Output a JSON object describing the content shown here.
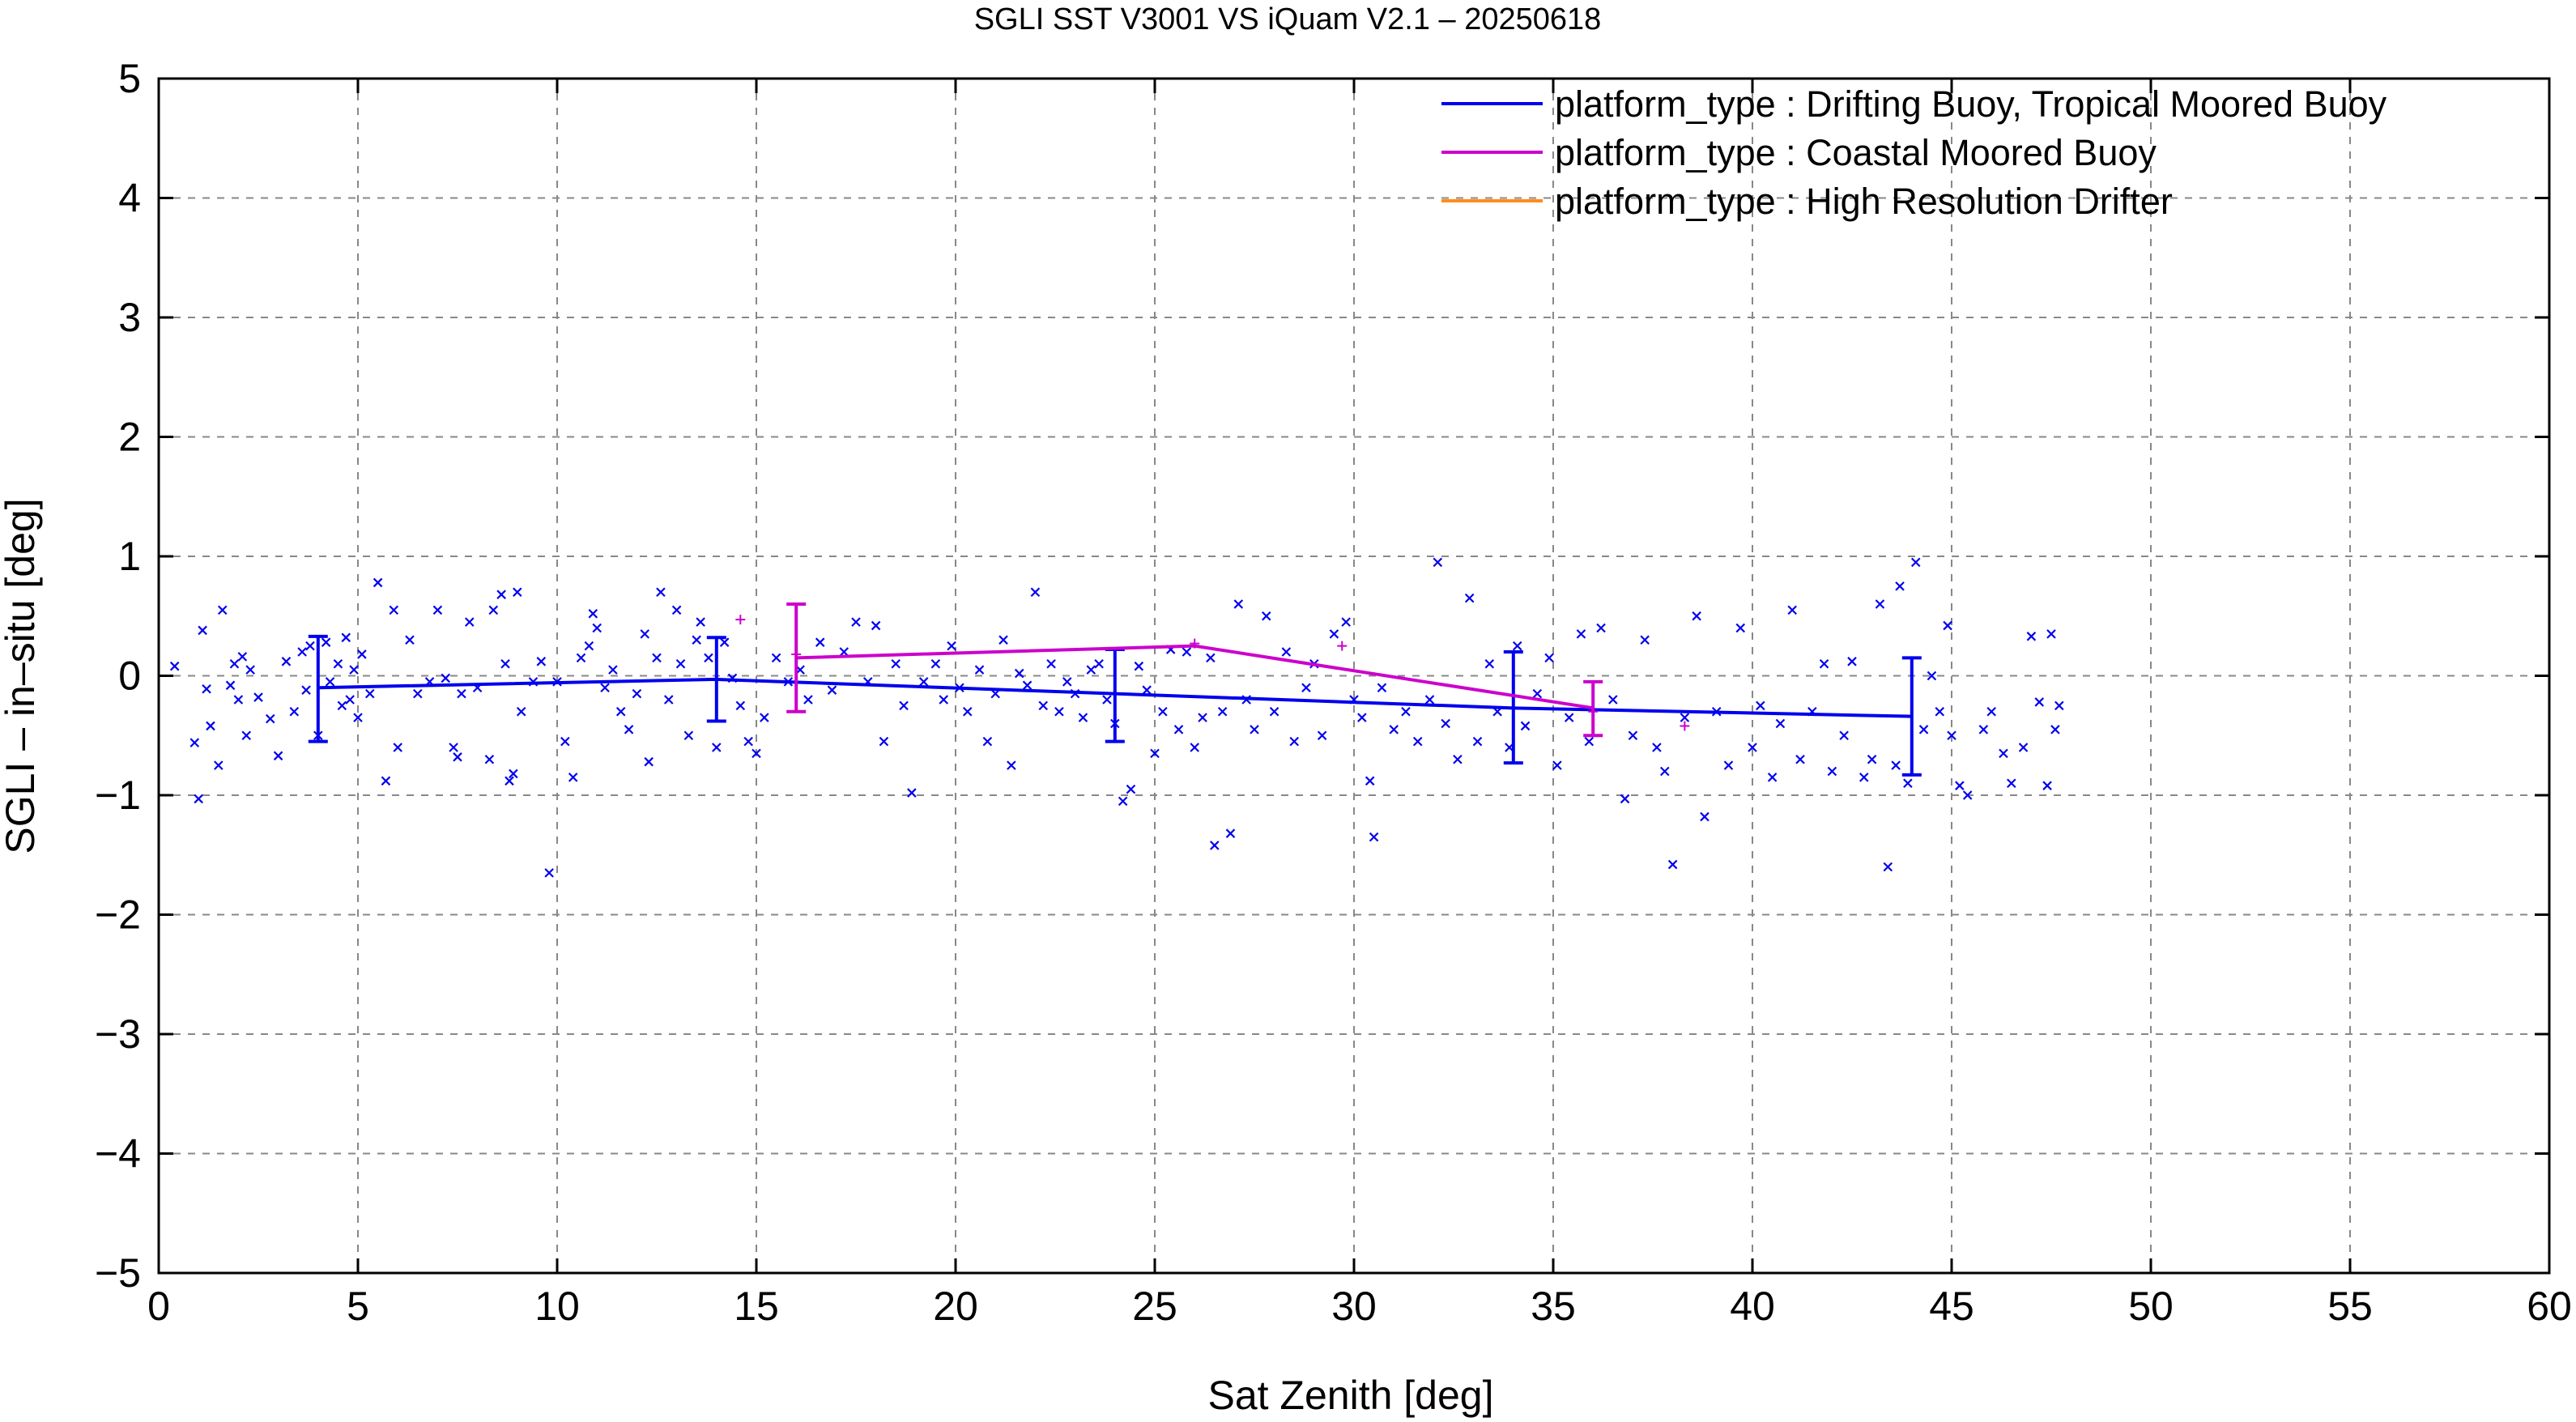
{
  "chart_data": {
    "type": "scatter",
    "title": "SGLI SST V3001 VS iQuam V2.1  – 20250618",
    "xlabel": "Sat Zenith [deg]",
    "ylabel": "SGLI – in–situ [deg]",
    "xlim": [
      0,
      60
    ],
    "ylim": [
      -5,
      5
    ],
    "xticks": [
      0,
      5,
      10,
      15,
      20,
      25,
      30,
      35,
      40,
      45,
      50,
      55,
      60
    ],
    "yticks": [
      -5,
      -4,
      -3,
      -2,
      -1,
      0,
      1,
      2,
      3,
      4,
      5
    ],
    "xtick_labels": [
      "0",
      "5",
      "10",
      "15",
      "20",
      "25",
      "30",
      "35",
      "40",
      "45",
      "50",
      "55",
      "60"
    ],
    "ytick_labels": [
      "−5",
      "−4",
      "−3",
      "−2",
      "−1",
      "0",
      "1",
      "2",
      "3",
      "4",
      "5"
    ],
    "grid": true,
    "legend_position": "top-right",
    "series": [
      {
        "name": "platform_type : Drifting Buoy, Tropical Moored Buoy",
        "color": "#0000ee",
        "marker": "x",
        "mean_x": [
          4,
          14,
          24,
          34,
          44
        ],
        "mean_y": [
          -0.1,
          -0.03,
          -0.15,
          -0.27,
          -0.34
        ],
        "err_low": [
          -0.55,
          -0.38,
          -0.55,
          -0.73,
          -0.83
        ],
        "err_high": [
          0.33,
          0.32,
          0.22,
          0.2,
          0.15
        ],
        "points": [
          [
            0.4,
            0.08
          ],
          [
            0.9,
            -0.56
          ],
          [
            1.0,
            -1.03
          ],
          [
            1.1,
            0.38
          ],
          [
            1.2,
            -0.11
          ],
          [
            1.3,
            -0.42
          ],
          [
            1.5,
            -0.75
          ],
          [
            1.6,
            0.55
          ],
          [
            1.8,
            -0.08
          ],
          [
            1.9,
            0.1
          ],
          [
            2.0,
            -0.2
          ],
          [
            2.1,
            0.16
          ],
          [
            2.2,
            -0.5
          ],
          [
            2.3,
            0.05
          ],
          [
            2.5,
            -0.18
          ],
          [
            2.8,
            -0.36
          ],
          [
            3.0,
            -0.67
          ],
          [
            3.2,
            0.12
          ],
          [
            3.4,
            -0.3
          ],
          [
            3.6,
            0.2
          ],
          [
            3.7,
            -0.12
          ],
          [
            3.8,
            0.25
          ],
          [
            4.0,
            -0.5
          ],
          [
            4.2,
            0.28
          ],
          [
            4.3,
            -0.05
          ],
          [
            4.5,
            0.1
          ],
          [
            4.6,
            -0.25
          ],
          [
            4.7,
            0.32
          ],
          [
            4.8,
            -0.2
          ],
          [
            4.9,
            0.05
          ],
          [
            5.0,
            -0.35
          ],
          [
            5.1,
            0.18
          ],
          [
            5.3,
            -0.15
          ],
          [
            5.5,
            0.78
          ],
          [
            5.7,
            -0.88
          ],
          [
            5.9,
            0.55
          ],
          [
            6.0,
            -0.6
          ],
          [
            6.3,
            0.3
          ],
          [
            6.5,
            -0.15
          ],
          [
            6.8,
            -0.05
          ],
          [
            7.0,
            0.55
          ],
          [
            7.2,
            -0.02
          ],
          [
            7.4,
            -0.6
          ],
          [
            7.5,
            -0.68
          ],
          [
            7.6,
            -0.15
          ],
          [
            7.8,
            0.45
          ],
          [
            8.0,
            -0.1
          ],
          [
            8.3,
            -0.7
          ],
          [
            8.4,
            0.55
          ],
          [
            8.6,
            0.68
          ],
          [
            8.7,
            0.1
          ],
          [
            8.8,
            -0.88
          ],
          [
            8.9,
            -0.82
          ],
          [
            9.0,
            0.7
          ],
          [
            9.1,
            -0.3
          ],
          [
            9.4,
            -0.05
          ],
          [
            9.6,
            0.12
          ],
          [
            9.8,
            -1.65
          ],
          [
            10.0,
            -0.05
          ],
          [
            10.2,
            -0.55
          ],
          [
            10.4,
            -0.85
          ],
          [
            10.6,
            0.15
          ],
          [
            10.8,
            0.25
          ],
          [
            10.9,
            0.52
          ],
          [
            11.0,
            0.4
          ],
          [
            11.2,
            -0.1
          ],
          [
            11.4,
            0.05
          ],
          [
            11.6,
            -0.3
          ],
          [
            11.8,
            -0.45
          ],
          [
            12.0,
            -0.15
          ],
          [
            12.2,
            0.35
          ],
          [
            12.3,
            -0.72
          ],
          [
            12.5,
            0.15
          ],
          [
            12.6,
            0.7
          ],
          [
            12.8,
            -0.2
          ],
          [
            13.0,
            0.55
          ],
          [
            13.1,
            0.1
          ],
          [
            13.3,
            -0.5
          ],
          [
            13.5,
            0.3
          ],
          [
            13.6,
            0.45
          ],
          [
            13.8,
            0.15
          ],
          [
            14.0,
            -0.6
          ],
          [
            14.2,
            0.28
          ],
          [
            14.4,
            -0.02
          ],
          [
            14.6,
            -0.25
          ],
          [
            14.8,
            -0.55
          ],
          [
            15.0,
            -0.65
          ],
          [
            15.2,
            -0.35
          ],
          [
            15.5,
            0.15
          ],
          [
            15.8,
            -0.05
          ],
          [
            16.1,
            0.05
          ],
          [
            16.3,
            -0.2
          ],
          [
            16.6,
            0.28
          ],
          [
            16.9,
            -0.12
          ],
          [
            17.2,
            0.2
          ],
          [
            17.5,
            0.45
          ],
          [
            17.8,
            -0.05
          ],
          [
            18.0,
            0.42
          ],
          [
            18.2,
            -0.55
          ],
          [
            18.5,
            0.1
          ],
          [
            18.7,
            -0.25
          ],
          [
            18.9,
            -0.98
          ],
          [
            19.2,
            -0.05
          ],
          [
            19.5,
            0.1
          ],
          [
            19.7,
            -0.2
          ],
          [
            19.9,
            0.25
          ],
          [
            20.1,
            -0.1
          ],
          [
            20.3,
            -0.3
          ],
          [
            20.6,
            0.05
          ],
          [
            20.8,
            -0.55
          ],
          [
            21.0,
            -0.15
          ],
          [
            21.2,
            0.3
          ],
          [
            21.4,
            -0.75
          ],
          [
            21.6,
            0.02
          ],
          [
            21.8,
            -0.08
          ],
          [
            22.0,
            0.7
          ],
          [
            22.2,
            -0.25
          ],
          [
            22.4,
            0.1
          ],
          [
            22.6,
            -0.3
          ],
          [
            22.8,
            -0.05
          ],
          [
            23.0,
            -0.15
          ],
          [
            23.2,
            -0.35
          ],
          [
            23.4,
            0.05
          ],
          [
            23.6,
            0.1
          ],
          [
            23.8,
            -0.2
          ],
          [
            24.0,
            -0.4
          ],
          [
            24.2,
            -1.05
          ],
          [
            24.4,
            -0.95
          ],
          [
            24.6,
            0.08
          ],
          [
            24.8,
            -0.12
          ],
          [
            25.0,
            -0.65
          ],
          [
            25.2,
            -0.3
          ],
          [
            25.4,
            0.22
          ],
          [
            25.6,
            -0.45
          ],
          [
            25.8,
            0.2
          ],
          [
            26.0,
            -0.6
          ],
          [
            26.2,
            -0.35
          ],
          [
            26.4,
            0.15
          ],
          [
            26.5,
            -1.42
          ],
          [
            26.7,
            -0.3
          ],
          [
            26.9,
            -1.32
          ],
          [
            27.1,
            0.6
          ],
          [
            27.3,
            -0.2
          ],
          [
            27.5,
            -0.45
          ],
          [
            27.8,
            0.5
          ],
          [
            28.0,
            -0.3
          ],
          [
            28.3,
            0.2
          ],
          [
            28.5,
            -0.55
          ],
          [
            28.8,
            -0.1
          ],
          [
            29.0,
            0.1
          ],
          [
            29.2,
            -0.5
          ],
          [
            29.5,
            0.35
          ],
          [
            29.8,
            0.45
          ],
          [
            30.0,
            -0.2
          ],
          [
            30.2,
            -0.35
          ],
          [
            30.4,
            -0.88
          ],
          [
            30.5,
            -1.35
          ],
          [
            30.7,
            -0.1
          ],
          [
            31.0,
            -0.45
          ],
          [
            31.3,
            -0.3
          ],
          [
            31.6,
            -0.55
          ],
          [
            31.9,
            -0.2
          ],
          [
            32.1,
            0.95
          ],
          [
            32.3,
            -0.4
          ],
          [
            32.6,
            -0.7
          ],
          [
            32.9,
            0.65
          ],
          [
            33.1,
            -0.55
          ],
          [
            33.4,
            0.1
          ],
          [
            33.6,
            -0.3
          ],
          [
            33.9,
            -0.6
          ],
          [
            34.1,
            0.25
          ],
          [
            34.3,
            -0.42
          ],
          [
            34.6,
            -0.15
          ],
          [
            34.9,
            0.15
          ],
          [
            35.1,
            -0.75
          ],
          [
            35.4,
            -0.35
          ],
          [
            35.7,
            0.35
          ],
          [
            35.9,
            -0.55
          ],
          [
            36.2,
            0.4
          ],
          [
            36.5,
            -0.2
          ],
          [
            36.8,
            -1.03
          ],
          [
            37.0,
            -0.5
          ],
          [
            37.3,
            0.3
          ],
          [
            37.6,
            -0.6
          ],
          [
            37.8,
            -0.8
          ],
          [
            38.0,
            -1.58
          ],
          [
            38.3,
            -0.35
          ],
          [
            38.6,
            0.5
          ],
          [
            38.8,
            -1.18
          ],
          [
            39.1,
            -0.3
          ],
          [
            39.4,
            -0.75
          ],
          [
            39.7,
            0.4
          ],
          [
            40.0,
            -0.6
          ],
          [
            40.2,
            -0.25
          ],
          [
            40.5,
            -0.85
          ],
          [
            40.7,
            -0.4
          ],
          [
            41.0,
            0.55
          ],
          [
            41.2,
            -0.7
          ],
          [
            41.5,
            -0.3
          ],
          [
            41.8,
            0.1
          ],
          [
            42.0,
            -0.8
          ],
          [
            42.3,
            -0.5
          ],
          [
            42.5,
            0.12
          ],
          [
            42.8,
            -0.85
          ],
          [
            43.0,
            -0.7
          ],
          [
            43.2,
            0.6
          ],
          [
            43.4,
            -1.6
          ],
          [
            43.6,
            -0.75
          ],
          [
            43.7,
            0.75
          ],
          [
            43.9,
            -0.9
          ],
          [
            44.1,
            0.95
          ],
          [
            44.3,
            -0.45
          ],
          [
            44.5,
            0.0
          ],
          [
            44.7,
            -0.3
          ],
          [
            44.9,
            0.42
          ],
          [
            45.0,
            -0.5
          ],
          [
            45.2,
            -0.92
          ],
          [
            45.4,
            -1.0
          ],
          [
            45.8,
            -0.45
          ],
          [
            46.0,
            -0.3
          ],
          [
            46.3,
            -0.65
          ],
          [
            46.5,
            -0.9
          ],
          [
            46.8,
            -0.6
          ],
          [
            47.0,
            0.33
          ],
          [
            47.2,
            -0.22
          ],
          [
            47.4,
            -0.92
          ],
          [
            47.5,
            0.35
          ],
          [
            47.6,
            -0.45
          ],
          [
            47.7,
            -0.25
          ]
        ]
      },
      {
        "name": "platform_type : Coastal Moored Buoy",
        "color": "#cc00cc",
        "marker": "+",
        "mean_x": [
          16,
          26,
          36
        ],
        "mean_y": [
          0.15,
          0.25,
          -0.27
        ],
        "err_low": [
          -0.3,
          null,
          -0.5
        ],
        "err_high": [
          0.6,
          null,
          -0.05
        ],
        "points": [
          [
            14.6,
            0.47
          ],
          [
            16.0,
            0.18
          ],
          [
            26.0,
            0.27
          ],
          [
            29.7,
            0.25
          ],
          [
            36.0,
            -0.3
          ],
          [
            38.3,
            -0.42
          ]
        ]
      },
      {
        "name": "platform_type : High Resolution Drifter",
        "color": "#ff8c1a",
        "marker": "line",
        "mean_x": [],
        "mean_y": [],
        "points": []
      }
    ]
  }
}
